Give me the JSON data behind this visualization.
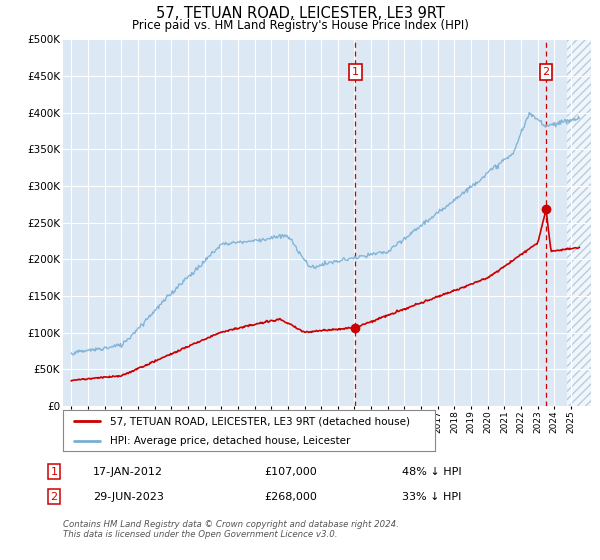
{
  "title": "57, TETUAN ROAD, LEICESTER, LE3 9RT",
  "subtitle": "Price paid vs. HM Land Registry's House Price Index (HPI)",
  "background_color": "#dce9f5",
  "hatch_color": "#b8cce0",
  "legend_label_red": "57, TETUAN ROAD, LEICESTER, LE3 9RT (detached house)",
  "legend_label_blue": "HPI: Average price, detached house, Leicester",
  "annotation1_label": "1",
  "annotation1_date": "17-JAN-2012",
  "annotation1_price": "£107,000",
  "annotation1_pct": "48% ↓ HPI",
  "annotation2_label": "2",
  "annotation2_date": "29-JUN-2023",
  "annotation2_price": "£268,000",
  "annotation2_pct": "33% ↓ HPI",
  "footer": "Contains HM Land Registry data © Crown copyright and database right 2024.\nThis data is licensed under the Open Government Licence v3.0.",
  "ylim": [
    0,
    500000
  ],
  "xmin": 1994.5,
  "xmax": 2026.2,
  "marker1_x": 2012.05,
  "marker1_y": 107000,
  "marker2_x": 2023.5,
  "marker2_y": 268000,
  "vline1_x": 2012.05,
  "vline2_x": 2023.5,
  "red_color": "#cc0000",
  "blue_color": "#7aafd4",
  "annotation_box_color": "#cc0000",
  "hatch_start": 2024.75
}
